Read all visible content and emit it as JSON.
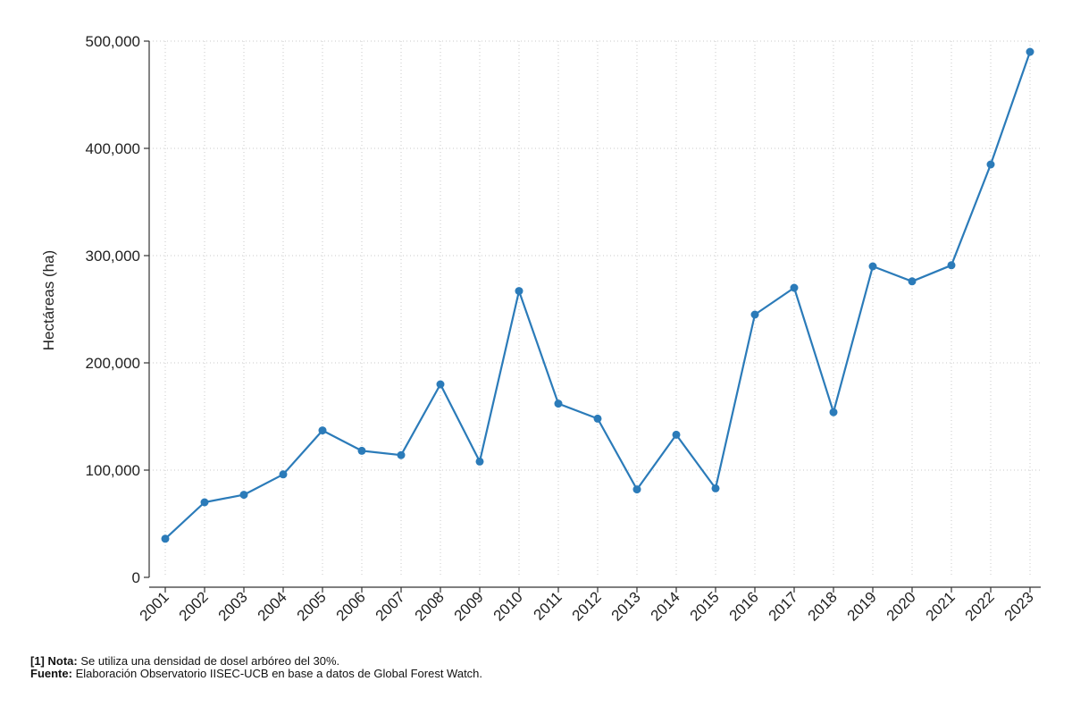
{
  "chart_data": {
    "type": "line",
    "title": "",
    "xlabel": "",
    "ylabel": "Hectáreas (ha)",
    "x": [
      "2001",
      "2002",
      "2003",
      "2004",
      "2005",
      "2006",
      "2007",
      "2008",
      "2009",
      "2010",
      "2011",
      "2012",
      "2013",
      "2014",
      "2015",
      "2016",
      "2017",
      "2018",
      "2019",
      "2020",
      "2021",
      "2022",
      "2023"
    ],
    "values": [
      36000,
      70000,
      77000,
      96000,
      137000,
      118000,
      114000,
      180000,
      108000,
      267000,
      162000,
      148000,
      82000,
      133000,
      83000,
      245000,
      270000,
      154000,
      290000,
      276000,
      291000,
      385000,
      490000
    ],
    "ylim": [
      0,
      500000
    ],
    "yticks": [
      0,
      100000,
      200000,
      300000,
      400000,
      500000
    ],
    "ytick_labels": [
      "0",
      "100,000",
      "200,000",
      "300,000",
      "400,000",
      "500,000"
    ],
    "grid": true,
    "series_color": "#2b7bb9"
  },
  "notes": {
    "note_label": "[1] Nota:",
    "note_text": " Se utiliza una densidad de dosel arbóreo del 30%.",
    "source_label": "Fuente:",
    "source_text": " Elaboración Observatorio IISEC-UCB en base a datos de Global Forest Watch."
  }
}
